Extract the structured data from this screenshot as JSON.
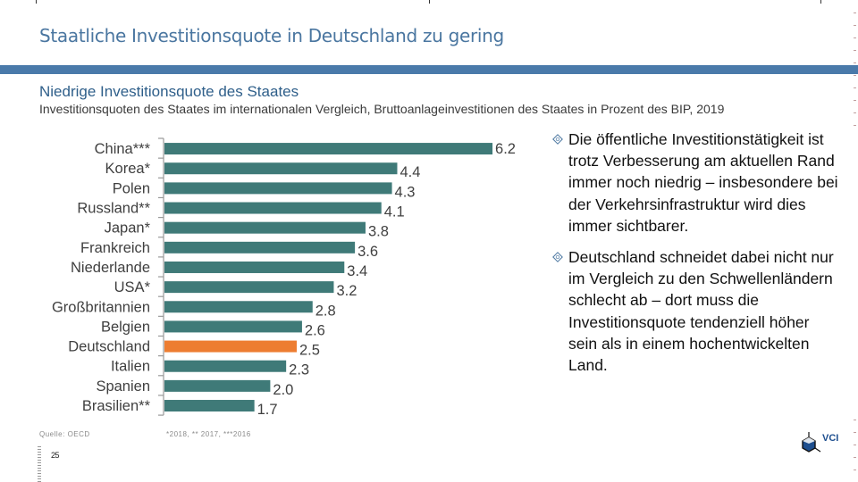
{
  "slide": {
    "title": "Staatliche Investitionsquote in Deutschland zu gering",
    "subtitle": "Niedrige Investitionsquote des Staates",
    "description": "Investitionsquoten des Staates im internationalen Vergleich, Bruttoanlageinvestitionen des Staates in Prozent des BIP, 2019",
    "source": "Quelle: OECD",
    "footnote": "*2018, ** 2017, ***2016",
    "page_number": "25",
    "logo_text": "VCI",
    "colors": {
      "title": "#4a76a0",
      "rule": "#4a7aaa",
      "bar_default": "#3f7a78",
      "bar_highlight": "#ed7d31"
    }
  },
  "bullets": [
    {
      "icon": "diamond-bullet-icon",
      "text": "Die öffentliche Investitionstätigkeit ist trotz Verbesserung am aktuellen Rand immer noch niedrig – insbesondere bei der Verkehrsinfrastruktur wird dies immer sichtbarer."
    },
    {
      "icon": "diamond-bullet-icon",
      "text": "Deutschland schneidet dabei nicht nur im Vergleich zu den Schwellenländern schlecht ab – dort muss die Investitionsquote tendenziell höher sein als in einem hochentwickelten Land."
    }
  ],
  "chart_data": {
    "type": "bar",
    "orientation": "horizontal",
    "title": "Niedrige Investitionsquote des Staates",
    "subtitle": "Investitionsquoten des Staates im internationalen Vergleich, Bruttoanlageinvestitionen des Staates in Prozent des BIP, 2019",
    "xlabel": "",
    "ylabel": "",
    "categories": [
      "China***",
      "Korea*",
      "Polen",
      "Russland**",
      "Japan*",
      "Frankreich",
      "Niederlande",
      "USA*",
      "Großbritannien",
      "Belgien",
      "Deutschland",
      "Italien",
      "Spanien",
      "Brasilien**"
    ],
    "values": [
      6.2,
      4.4,
      4.3,
      4.1,
      3.8,
      3.6,
      3.4,
      3.2,
      2.8,
      2.6,
      2.5,
      2.3,
      2.0,
      1.7
    ],
    "value_labels": [
      "6.2",
      "4.4",
      "4.3",
      "4.1",
      "3.8",
      "3.6",
      "3.4",
      "3.2",
      "2.8",
      "2.6",
      "2.5",
      "2.3",
      "2.0",
      "1.7"
    ],
    "highlight": "Deutschland",
    "xlim": [
      0,
      6.2
    ],
    "grid": false,
    "legend": "none",
    "unit": "% des BIP"
  }
}
